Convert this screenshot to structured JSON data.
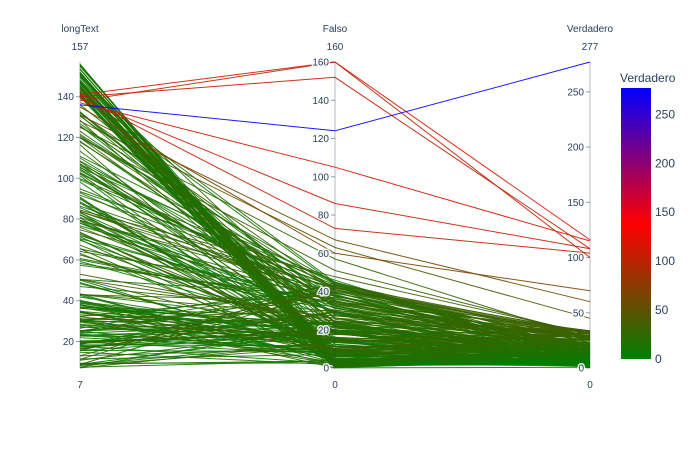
{
  "chart_data": {
    "type": "parallel_coordinates",
    "title": "",
    "dimensions": [
      {
        "label": "longText",
        "min": 7,
        "max": 157,
        "range_min_label": "7",
        "range_max_label": "157",
        "ticks": [
          20,
          40,
          60,
          80,
          100,
          120,
          140
        ]
      },
      {
        "label": "Falso",
        "min": 0,
        "max": 160,
        "range_min_label": "0",
        "range_max_label": "160",
        "ticks": [
          0,
          20,
          40,
          60,
          80,
          100,
          120,
          140,
          160
        ]
      },
      {
        "label": "Verdadero",
        "min": 0,
        "max": 277,
        "range_min_label": "0",
        "range_max_label": "277",
        "ticks": [
          0,
          50,
          100,
          150,
          200,
          250
        ]
      }
    ],
    "colorbar": {
      "title": "Verdadero",
      "min": 0,
      "max": 277,
      "ticks": [
        0,
        50,
        100,
        150,
        200,
        250
      ],
      "colorscale": [
        "#008000",
        "#ff0000",
        "#0000ff"
      ]
    },
    "highlight_lines": [
      {
        "values": [
          136,
          124,
          277
        ]
      },
      {
        "values": [
          138,
          160,
          100
        ]
      },
      {
        "values": [
          140,
          152,
          108
        ]
      },
      {
        "values": [
          141,
          160,
          116
        ]
      },
      {
        "values": [
          137,
          105,
          115
        ]
      },
      {
        "values": [
          139,
          86,
          108
        ]
      },
      {
        "values": [
          140,
          73,
          104
        ]
      },
      {
        "values": [
          135,
          60,
          70
        ]
      },
      {
        "values": [
          131,
          67,
          60
        ]
      },
      {
        "values": [
          128,
          63,
          45
        ]
      },
      {
        "values": [
          125,
          57,
          26
        ]
      },
      {
        "values": [
          120,
          51,
          30
        ]
      }
    ],
    "random_lines": {
      "count": 230,
      "seed": 7
    }
  }
}
